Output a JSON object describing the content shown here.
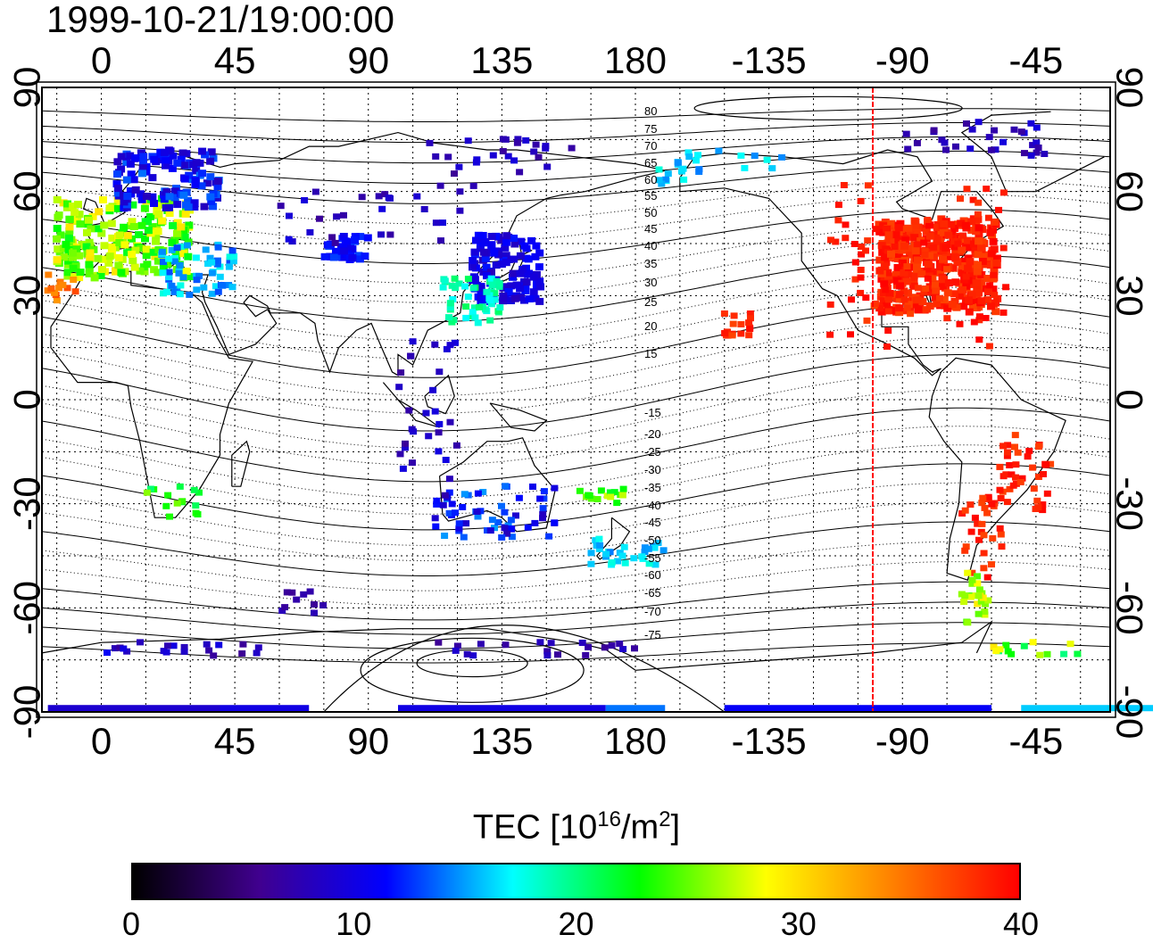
{
  "title": "1999-10-21/19:00:00",
  "map": {
    "lon_ticks": [
      "0",
      "45",
      "90",
      "135",
      "180",
      "-135",
      "-90",
      "-45"
    ],
    "lat_ticks": [
      "90",
      "60",
      "30",
      "0",
      "-30",
      "-60",
      "-90"
    ],
    "contour_labels_north": [
      "80",
      "75",
      "70",
      "65",
      "60",
      "55",
      "50",
      "45",
      "40",
      "35",
      "30",
      "25",
      "20",
      "15"
    ],
    "contour_labels_south": [
      "-15",
      "-20",
      "-25",
      "-30",
      "-35",
      "-40",
      "-45",
      "-50",
      "-55",
      "-60",
      "-65",
      "-70",
      "-75"
    ],
    "marker_longitude": -100,
    "marker_color": "#ff0000"
  },
  "colorbar": {
    "label_main": "TEC  [10",
    "label_sup1": "16",
    "label_mid": "/m",
    "label_sup2": "2",
    "label_end": "]",
    "min": 0,
    "max": 40,
    "ticks": [
      "0",
      "10",
      "20",
      "30",
      "40"
    ],
    "colors": [
      "#000000",
      "#40008f",
      "#0000ff",
      "#00ffff",
      "#00ff00",
      "#ffff00",
      "#ff8000",
      "#ff0000"
    ]
  }
}
